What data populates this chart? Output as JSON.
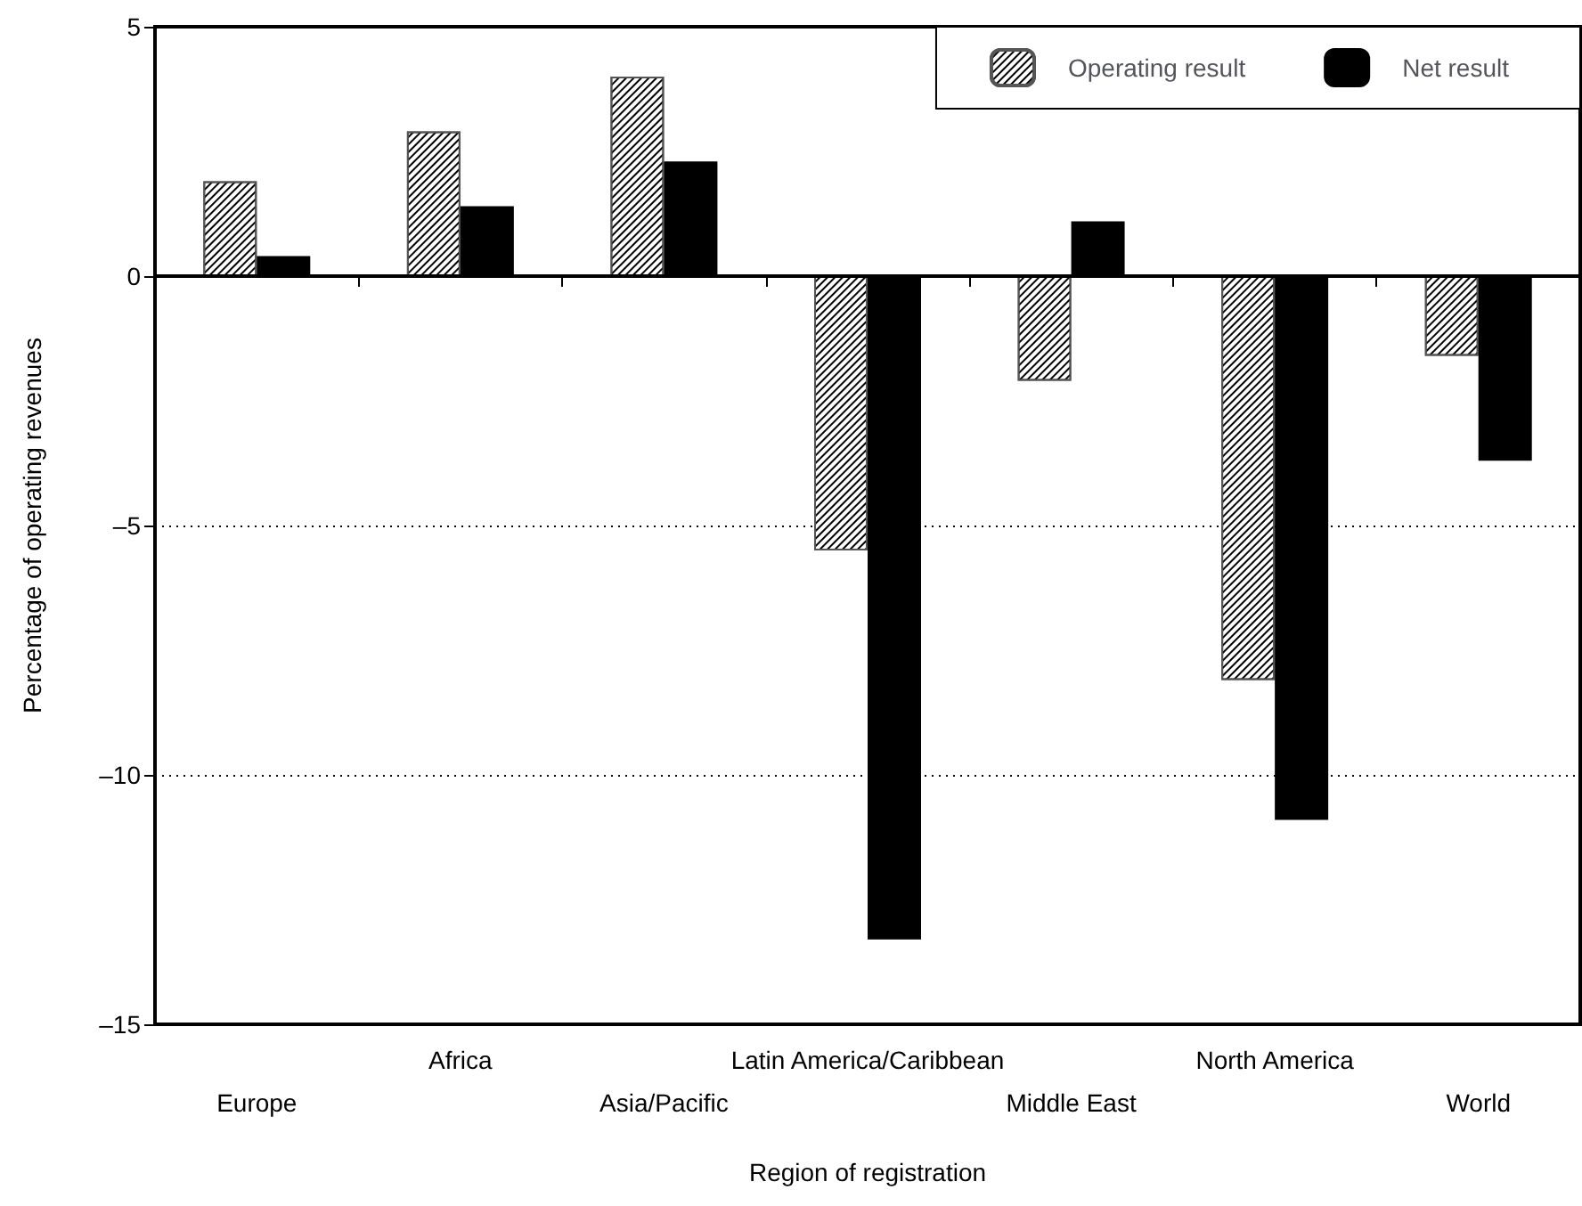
{
  "chart_data": {
    "type": "bar",
    "xlabel": "Region of registration",
    "ylabel": "Percentage of operating revenues",
    "categories": [
      "Europe",
      "Africa",
      "Asia/Pacific",
      "Latin America/Caribbean",
      "Middle East",
      "North America",
      "World"
    ],
    "series": [
      {
        "name": "Operating result",
        "color": "#ffffff",
        "values": [
          1.9,
          2.9,
          4.0,
          -5.5,
          -2.1,
          -8.1,
          -1.6
        ]
      },
      {
        "name": "Net result",
        "color": "#000000",
        "values": [
          0.4,
          1.4,
          2.3,
          -13.3,
          1.1,
          -10.9,
          -3.7
        ]
      }
    ],
    "ylim": [
      -15,
      5
    ],
    "yticks": [
      {
        "value": -15,
        "label": "–15"
      },
      {
        "value": -10,
        "label": "–10"
      },
      {
        "value": -5,
        "label": "–5"
      },
      0,
      5
    ],
    "ref_lines": [
      {
        "axis": "y",
        "value": 0,
        "color": "#000000",
        "line_style": "solid"
      }
    ],
    "grid": "y",
    "legend": "top right"
  }
}
